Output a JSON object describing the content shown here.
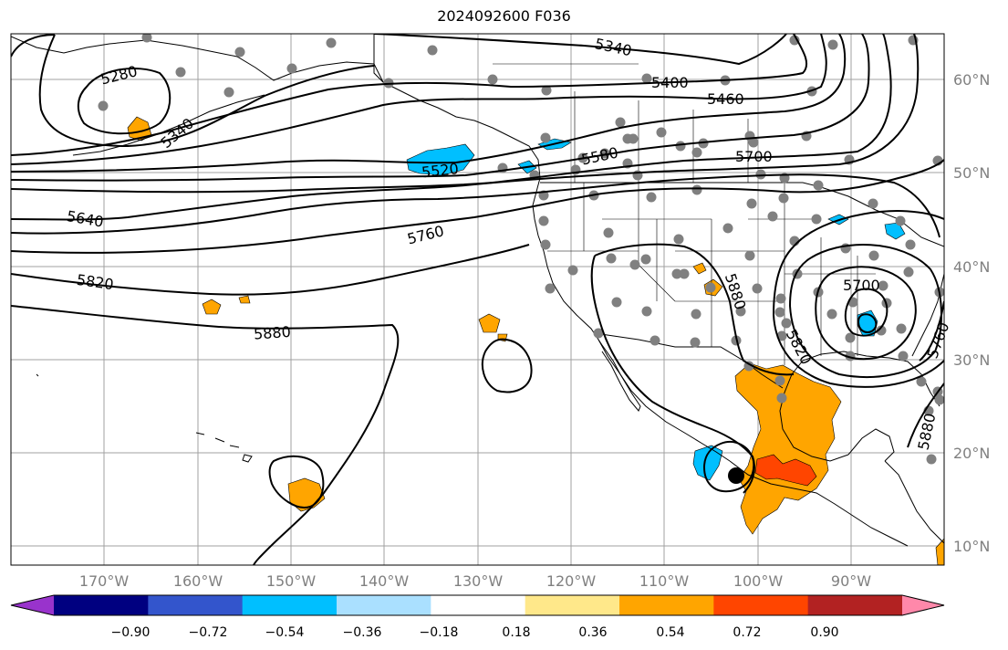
{
  "title": "2024092600 F036",
  "lat_ticks": [
    "60°N",
    "50°N",
    "40°N",
    "30°N",
    "20°N",
    "10°N"
  ],
  "lon_ticks": [
    "170°W",
    "160°W",
    "150°W",
    "140°W",
    "130°W",
    "120°W",
    "110°W",
    "100°W",
    "90°W"
  ],
  "colorbar": {
    "colors": [
      "#9933cc",
      "#000080",
      "#3355cc",
      "#00bfff",
      "#aae0ff",
      "#ffffff",
      "#ffe88a",
      "#ffa500",
      "#ff4500",
      "#b22222",
      "#ff88aa"
    ],
    "labels": [
      "−0.90",
      "−0.72",
      "−0.54",
      "−0.36",
      "−0.18",
      "0.18",
      "0.36",
      "0.54",
      "0.72",
      "0.90"
    ]
  },
  "contour_labels": [
    "5340",
    "5280",
    "5340",
    "5400",
    "5460",
    "5520",
    "5580",
    "5700",
    "5640",
    "5760",
    "5820",
    "5880",
    "5700",
    "5820",
    "5880",
    "5760",
    "5880"
  ]
}
